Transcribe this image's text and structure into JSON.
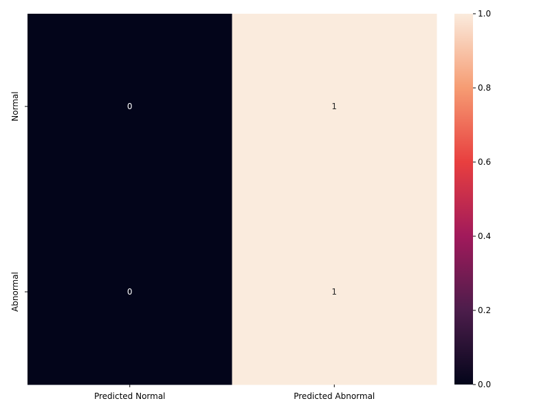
{
  "chart_data": {
    "type": "heatmap",
    "title": "",
    "xlabel": "",
    "ylabel": "",
    "x_categories": [
      "Predicted Normal",
      "Predicted Abnormal"
    ],
    "y_categories": [
      "Normal",
      "Abnormal"
    ],
    "values": [
      [
        0,
        1
      ],
      [
        0,
        1
      ]
    ],
    "annotations": [
      [
        "0",
        "1"
      ],
      [
        "0",
        "1"
      ]
    ],
    "colorbar": {
      "vmin": 0.0,
      "vmax": 1.0,
      "ticks": [
        "0.0",
        "0.2",
        "0.4",
        "0.6",
        "0.8",
        "1.0"
      ],
      "colormap": "rocket",
      "colors": [
        "#03051a",
        "#4c1d4b",
        "#a11a5b",
        "#e83f3f",
        "#f69c73",
        "#faebdd"
      ]
    },
    "grid": false,
    "legend": "colorbar-right"
  }
}
